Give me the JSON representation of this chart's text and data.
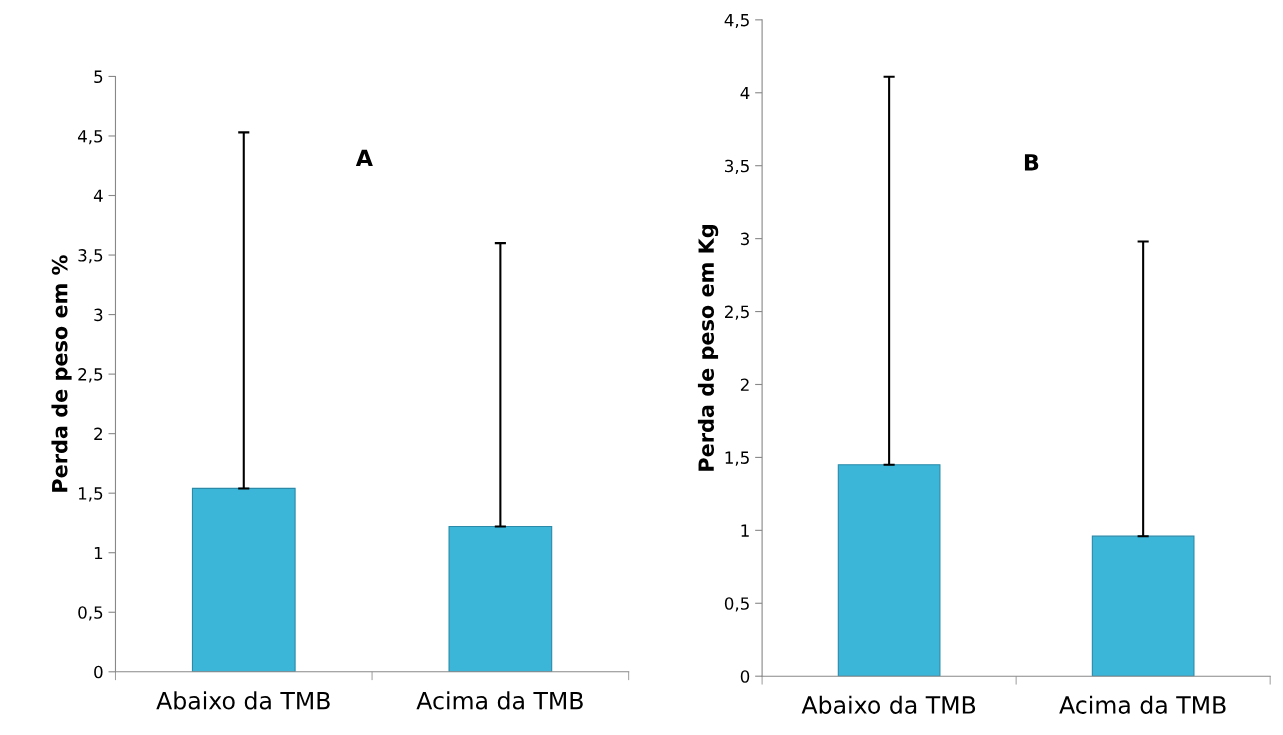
{
  "chart_data": [
    {
      "type": "bar",
      "title": "A",
      "ylabel": "Perda de peso em %",
      "categories": [
        "Abaixo da TMB",
        "Acima da TMB"
      ],
      "values": [
        1.54,
        1.22
      ],
      "errors": [
        [
          1.54,
          4.53
        ],
        [
          1.22,
          3.6
        ]
      ],
      "color": "#3bb5d8",
      "ylim": [
        0,
        5
      ],
      "yticks": [
        0,
        {
          "value": 0.5,
          "label": "0,5"
        },
        1,
        {
          "value": 1.5,
          "label": "1,5"
        },
        2,
        {
          "value": 2.5,
          "label": "2,5"
        },
        3,
        {
          "value": 3.5,
          "label": "3,5"
        },
        4,
        {
          "value": 4.5,
          "label": "4,5"
        },
        5
      ],
      "grid": false,
      "legend": false
    },
    {
      "type": "bar",
      "title": "B",
      "ylabel": "Perda de peso em Kg",
      "categories": [
        "Abaixo da TMB",
        "Acima da TMB"
      ],
      "values": [
        1.45,
        0.96
      ],
      "errors": [
        [
          1.45,
          4.11
        ],
        [
          0.96,
          2.98
        ]
      ],
      "color": "#3bb5d8",
      "ylim": [
        0,
        4.5
      ],
      "yticks": [
        0,
        {
          "value": 0.5,
          "label": "0,5"
        },
        1,
        {
          "value": 1.5,
          "label": "1,5"
        },
        2,
        {
          "value": 2.5,
          "label": "2,5"
        },
        3,
        {
          "value": 3.5,
          "label": "3,5"
        },
        4,
        {
          "value": 4.5,
          "label": "4,5"
        }
      ],
      "grid": false,
      "legend": false
    }
  ]
}
